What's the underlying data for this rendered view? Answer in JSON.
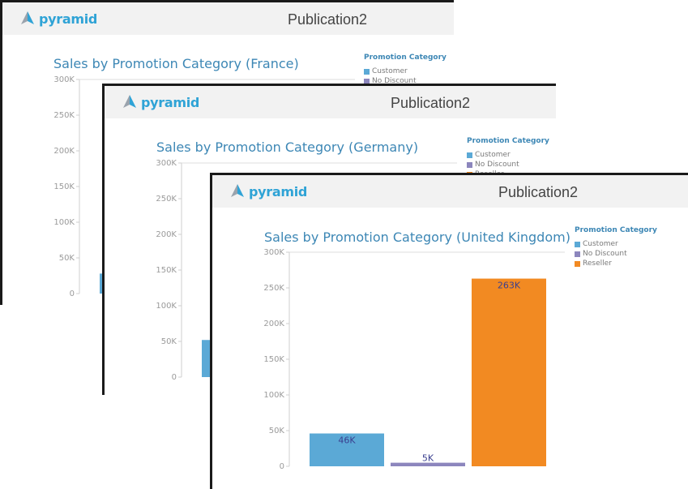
{
  "colors": {
    "customer": "#5ba9d6",
    "no_discount": "#8c86bd",
    "reseller": "#f28a22",
    "brand": "#2fa3d6",
    "title": "#3d87b5"
  },
  "pages": [
    {
      "id": "france",
      "logo_text": "pyramid",
      "publication_title": "Publication2",
      "legend_title": "Promotion Category",
      "legend_items": [
        "Customer",
        "No Discount"
      ]
    },
    {
      "id": "germany",
      "logo_text": "pyramid",
      "publication_title": "Publication2",
      "legend_title": "Promotion Category",
      "legend_items": [
        "Customer",
        "No Discount",
        "Reseller"
      ]
    },
    {
      "id": "uk",
      "logo_text": "pyramid",
      "publication_title": "Publication2",
      "legend_title": "Promotion Category",
      "legend_items": [
        "Customer",
        "No Discount",
        "Reseller"
      ]
    }
  ],
  "chart_data": [
    {
      "type": "bar",
      "title": "Sales by Promotion Category (France)",
      "categories": [
        "Customer"
      ],
      "values": [
        28000
      ],
      "labels": [
        ""
      ],
      "yticks": [
        "0",
        "50K",
        "100K",
        "150K",
        "200K",
        "250K",
        "300K"
      ],
      "ylim": [
        0,
        300000
      ],
      "grid": false
    },
    {
      "type": "bar",
      "title": "Sales by Promotion Category (Germany)",
      "categories": [
        "Customer"
      ],
      "values": [
        52000
      ],
      "labels": [
        ""
      ],
      "yticks": [
        "0",
        "50K",
        "100K",
        "150K",
        "200K",
        "250K",
        "300K"
      ],
      "ylim": [
        0,
        300000
      ],
      "grid": false
    },
    {
      "type": "bar",
      "title": "Sales by Promotion Category (United Kingdom)",
      "categories": [
        "Customer",
        "No Discount",
        "Reseller"
      ],
      "values": [
        46000,
        5000,
        263000
      ],
      "labels": [
        "46K",
        "5K",
        "263K"
      ],
      "yticks": [
        "0",
        "50K",
        "100K",
        "150K",
        "200K",
        "250K",
        "300K"
      ],
      "ylim": [
        0,
        300000
      ],
      "grid": false
    }
  ]
}
